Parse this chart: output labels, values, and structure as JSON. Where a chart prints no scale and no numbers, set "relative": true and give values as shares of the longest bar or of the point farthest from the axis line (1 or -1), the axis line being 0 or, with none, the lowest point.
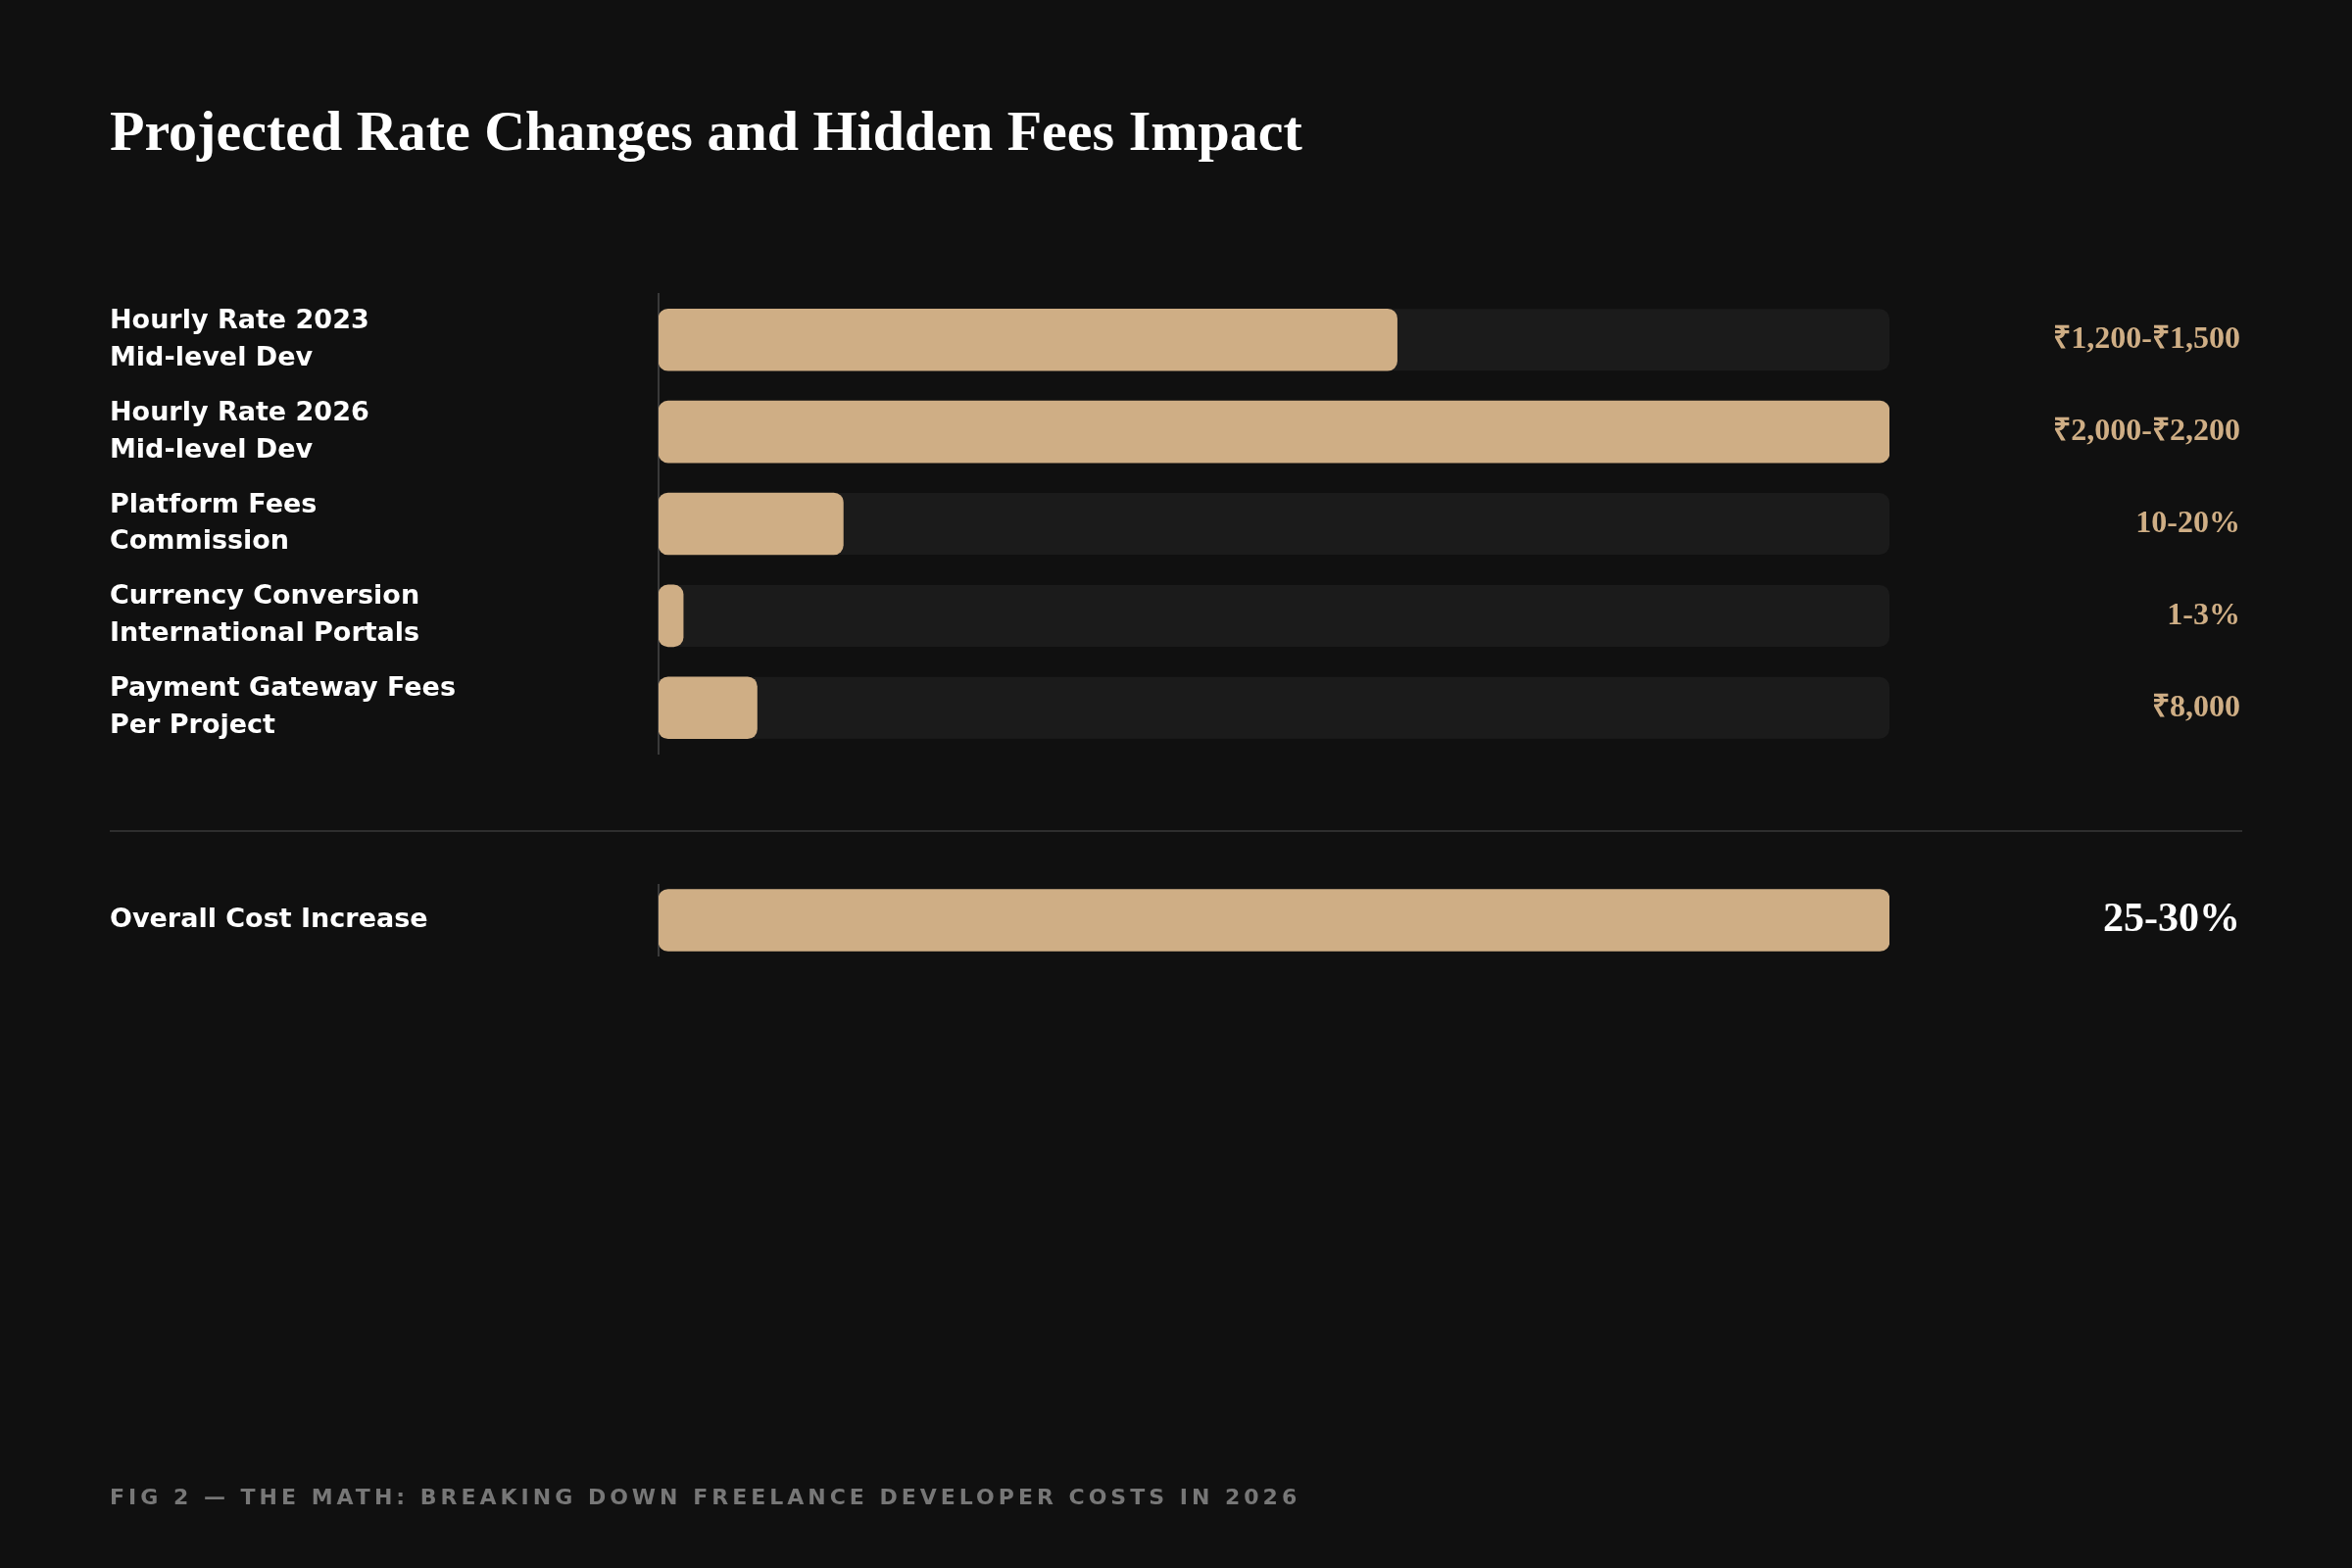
{
  "chart_data": [
    {
      "type": "bar",
      "orientation": "horizontal",
      "relative": true,
      "title": "Projected Rate Changes and Hidden Fees Impact",
      "categories": [
        "Hourly Rate 2023\nMid-level Dev",
        "Hourly Rate 2026\nMid-level Dev",
        "Platform Fees\nCommission",
        "Currency Conversion\nInternational Portals",
        "Payment Gateway Fees\nPer Project"
      ],
      "values": [
        0.6,
        1,
        0.15,
        0.02,
        0.08
      ],
      "color": "#cfae85",
      "annotations": [
        "₹1,200-₹1,500",
        "₹2,000-₹2,200",
        "10-20%",
        "1-3%",
        "₹8,000"
      ]
    },
    {
      "type": "bar",
      "orientation": "horizontal",
      "relative": true,
      "categories": [
        "Overall Cost Increase"
      ],
      "values": [
        1
      ],
      "color": "#cfae85",
      "annotations": [
        "25-30%",
        "FIG 2 — THE MATH: BREAKING DOWN FREELANCE DEVELOPER COSTS IN 2026"
      ]
    }
  ]
}
